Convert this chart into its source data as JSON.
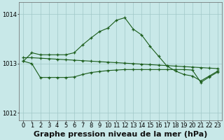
{
  "bg_color": "#c8e8e8",
  "grid_color": "#a0c8c8",
  "line_color": "#1a5c1a",
  "xlabel": "Graphe pression niveau de la mer (hPa)",
  "xlabel_fontsize": 8,
  "tick_fontsize": 6,
  "yticks": [
    1012,
    1013,
    1014
  ],
  "xlim": [
    -0.5,
    23.5
  ],
  "ylim": [
    1011.85,
    1014.25
  ],
  "line1_y": [
    1013.05,
    1013.22,
    1013.18,
    1013.18,
    1013.18,
    1013.18,
    1013.22,
    1013.38,
    1013.52,
    1013.65,
    1013.72,
    1013.88,
    1013.93,
    1013.7,
    1013.58,
    1013.35,
    1013.15,
    1012.95,
    1012.85,
    1012.78,
    1012.75,
    1012.65,
    1012.75,
    1012.85
  ],
  "line2_y": [
    1013.12,
    1013.12,
    1013.11,
    1013.1,
    1013.09,
    1013.08,
    1013.07,
    1013.06,
    1013.05,
    1013.04,
    1013.03,
    1013.02,
    1013.01,
    1013.0,
    1012.99,
    1012.98,
    1012.97,
    1012.96,
    1012.95,
    1012.94,
    1012.93,
    1012.92,
    1012.91,
    1012.9
  ],
  "line3_y": [
    1013.05,
    1013.0,
    1012.72,
    1012.72,
    1012.72,
    1012.72,
    1012.73,
    1012.78,
    1012.82,
    1012.84,
    1012.86,
    1012.87,
    1012.88,
    1012.88,
    1012.88,
    1012.88,
    1012.88,
    1012.88,
    1012.88,
    1012.88,
    1012.87,
    1012.62,
    1012.73,
    1012.83
  ]
}
